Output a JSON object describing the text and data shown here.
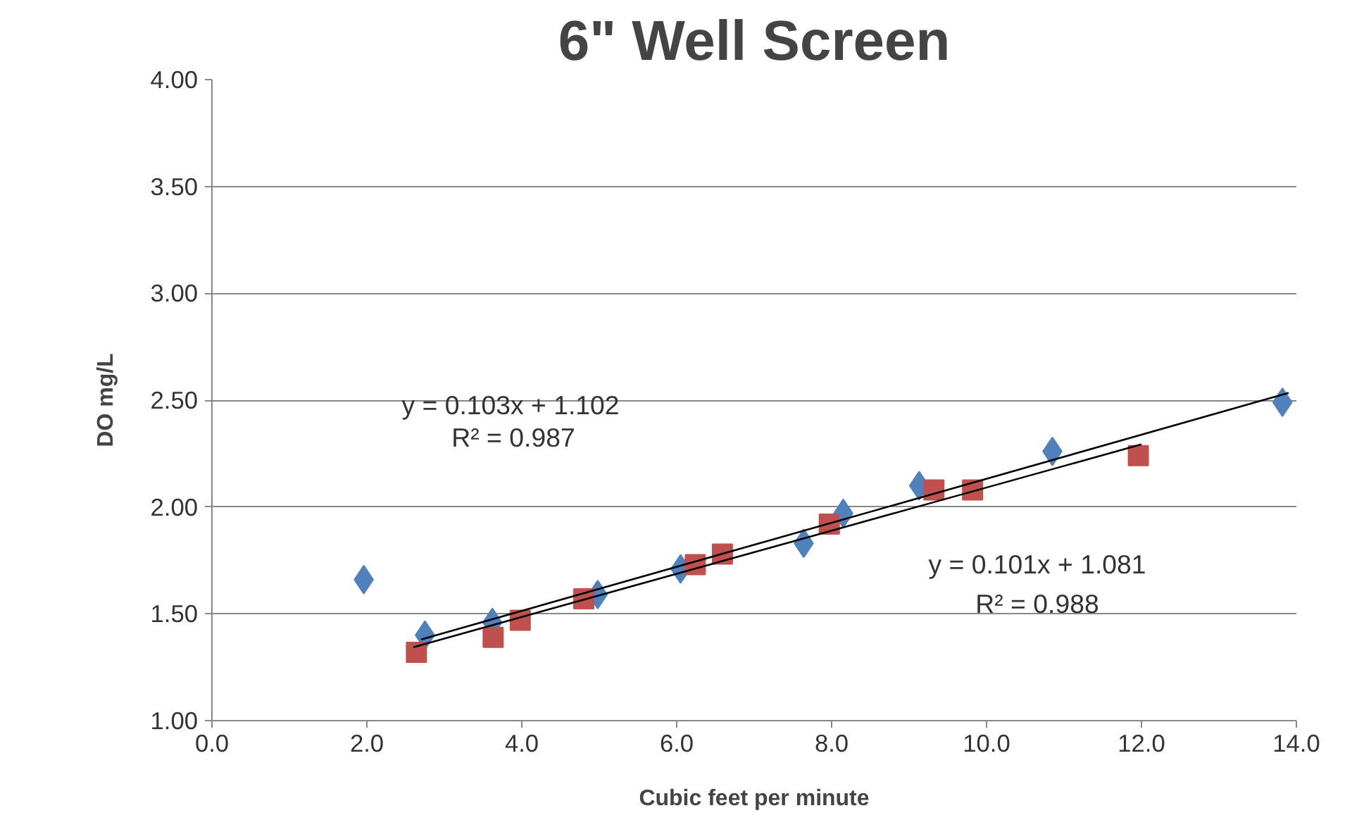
{
  "chart_data": {
    "type": "scatter",
    "title": "6\" Well Screen",
    "xlabel": "Cubic feet per minute",
    "ylabel": "DO mg/L",
    "xlim": [
      0,
      14
    ],
    "xticks": [
      {
        "value": 0,
        "label": "0.0"
      },
      {
        "value": 2,
        "label": "2.0"
      },
      {
        "value": 4,
        "label": "4.0"
      },
      {
        "value": 6,
        "label": "6.0"
      },
      {
        "value": 8,
        "label": "8.0"
      },
      {
        "value": 10,
        "label": "10.0"
      },
      {
        "value": 12,
        "label": "12.0"
      },
      {
        "value": 14,
        "label": "14.0"
      }
    ],
    "ylim": [
      1,
      4
    ],
    "yticks": [
      {
        "value": 1,
        "label": "1.00"
      },
      {
        "value": 1.5,
        "label": "1.50"
      },
      {
        "value": 2,
        "label": "2.00"
      },
      {
        "value": 2.5,
        "label": "2.50"
      },
      {
        "value": 3,
        "label": "3.00"
      },
      {
        "value": 3.5,
        "label": "3.50"
      },
      {
        "value": 4,
        "label": "4.00"
      }
    ],
    "grid": "y",
    "series": [
      {
        "marker": "diamond",
        "color": "#4f81bd",
        "x": [
          1.96,
          2.75,
          3.62,
          4.98,
          6.05,
          7.64,
          8.15,
          9.13,
          10.85,
          13.82
        ],
        "values": [
          1.66,
          1.4,
          1.46,
          1.59,
          1.71,
          1.83,
          1.97,
          2.1,
          2.26,
          2.49
        ]
      },
      {
        "marker": "square",
        "color": "#c0504d",
        "x": [
          2.64,
          3.63,
          3.98,
          4.8,
          6.24,
          6.59,
          7.97,
          9.32,
          9.82,
          11.96
        ],
        "values": [
          1.32,
          1.39,
          1.47,
          1.57,
          1.73,
          1.78,
          1.92,
          2.08,
          2.08,
          2.24
        ]
      },
      {
        "type": "line",
        "marker": "none",
        "color": "#000000",
        "x": [
          2.7,
          13.9
        ],
        "values": [
          1.38,
          2.534
        ]
      },
      {
        "type": "line",
        "marker": "none",
        "color": "#000000",
        "x": [
          2.6,
          12.0
        ],
        "values": [
          1.344,
          2.293
        ]
      }
    ],
    "annotations": [
      "y = 0.103x + 1.102",
      "R² = 0.987",
      "y = 0.101x + 1.081",
      "R² = 0.988"
    ]
  }
}
